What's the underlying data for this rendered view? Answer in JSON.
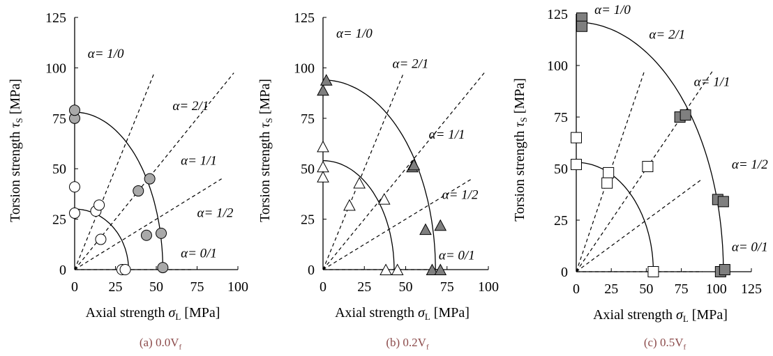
{
  "chart_data": [
    {
      "type": "scatter",
      "caption": "(a) 0.0V",
      "caption_sub": "f",
      "xlabel": "Axial strength",
      "xlabel_sym": "σ",
      "xlabel_sub": "L",
      "xlabel_unit": "[MPa]",
      "ylabel": "Torsion strength",
      "ylabel_sym": "τ",
      "ylabel_sub": "S",
      "ylabel_unit": "[MPa]",
      "xlim": [
        0,
        100
      ],
      "ylim": [
        0,
        125
      ],
      "xticks": [
        "0",
        "25",
        "50",
        "75",
        "100"
      ],
      "yticks": [
        "0",
        "25",
        "50",
        "75",
        "100",
        "125"
      ],
      "grid": false,
      "marker": "circle",
      "series": [
        {
          "fill": "#ffffff",
          "points": [
            [
              0,
              28
            ],
            [
              0,
              41
            ],
            [
              13,
              29
            ],
            [
              15,
              32
            ],
            [
              16,
              15
            ],
            [
              29,
              0
            ],
            [
              31,
              0
            ]
          ]
        },
        {
          "fill": "#a9a9a9",
          "points": [
            [
              0,
              75
            ],
            [
              0,
              79
            ],
            [
              39,
              39
            ],
            [
              46,
              45
            ],
            [
              44,
              17
            ],
            [
              53,
              18
            ],
            [
              54,
              1
            ]
          ]
        }
      ],
      "envelopes": [
        {
          "a": 33,
          "b": 30
        },
        {
          "a": 54,
          "b": 78
        }
      ],
      "ratio_lines": [
        {
          "label": "α= 1/0",
          "ratio": null,
          "lx": 8,
          "ly": 105
        },
        {
          "label": "α= 2/1",
          "ratio": 2,
          "lx": 60,
          "ly": 79
        },
        {
          "label": "α= 1/1",
          "ratio": 1,
          "lx": 65,
          "ly": 52
        },
        {
          "label": "α= 1/2",
          "ratio": 0.5,
          "lx": 75,
          "ly": 26
        },
        {
          "label": "α= 0/1",
          "ratio": 0,
          "lx": 65,
          "ly": 6
        }
      ]
    },
    {
      "type": "scatter",
      "caption": "(b) 0.2V",
      "caption_sub": "f",
      "xlabel": "Axial strength",
      "xlabel_sym": "σ",
      "xlabel_sub": "L",
      "xlabel_unit": "[MPa]",
      "ylabel": "Torsion strength",
      "ylabel_sym": "τ",
      "ylabel_sub": "S",
      "ylabel_unit": "[MPa]",
      "xlim": [
        0,
        100
      ],
      "ylim": [
        0,
        125
      ],
      "xticks": [
        "0",
        "25",
        "50",
        "75",
        "100"
      ],
      "yticks": [
        "0",
        "25",
        "50",
        "75",
        "100",
        "125"
      ],
      "grid": false,
      "marker": "triangle",
      "series": [
        {
          "fill": "#ffffff",
          "points": [
            [
              0,
              61
            ],
            [
              0,
              51
            ],
            [
              0,
              46
            ],
            [
              22,
              43
            ],
            [
              16,
              32
            ],
            [
              37,
              35
            ],
            [
              38,
              0
            ],
            [
              45,
              0
            ]
          ]
        },
        {
          "fill": "#7f7f7f",
          "points": [
            [
              0,
              89
            ],
            [
              2,
              94
            ],
            [
              54,
              51
            ],
            [
              55,
              52
            ],
            [
              62,
              20
            ],
            [
              71,
              22
            ],
            [
              66,
              0
            ],
            [
              71,
              0
            ]
          ]
        }
      ],
      "envelopes": [
        {
          "a": 43,
          "b": 54
        },
        {
          "a": 68,
          "b": 94
        }
      ],
      "ratio_lines": [
        {
          "label": "α= 1/0",
          "ratio": null,
          "lx": 8,
          "ly": 115
        },
        {
          "label": "α= 2/1",
          "ratio": 2,
          "lx": 42,
          "ly": 100
        },
        {
          "label": "α= 1/1",
          "ratio": 1,
          "lx": 64,
          "ly": 65
        },
        {
          "label": "α= 1/2",
          "ratio": 0.5,
          "lx": 72,
          "ly": 35
        },
        {
          "label": "α= 0/1",
          "ratio": 0,
          "lx": 70,
          "ly": 5
        }
      ]
    },
    {
      "type": "scatter",
      "caption": "(c) 0.5V",
      "caption_sub": "f",
      "xlabel": "Axial strength",
      "xlabel_sym": "σ",
      "xlabel_sub": "L",
      "xlabel_unit": "[MPa]",
      "ylabel": "Torsion strength",
      "ylabel_sym": "τ",
      "ylabel_sub": "S",
      "ylabel_unit": "[MPa]",
      "xlim": [
        0,
        125
      ],
      "ylim": [
        0,
        125
      ],
      "xticks": [
        "0",
        "25",
        "50",
        "75",
        "100",
        "125"
      ],
      "yticks": [
        "0",
        "25",
        "50",
        "75",
        "100",
        "125"
      ],
      "grid": false,
      "marker": "square",
      "series": [
        {
          "fill": "#ffffff",
          "points": [
            [
              0,
              65
            ],
            [
              0,
              52
            ],
            [
              23,
              48
            ],
            [
              22,
              43
            ],
            [
              51,
              51
            ],
            [
              55,
              0
            ]
          ]
        },
        {
          "fill": "#7f7f7f",
          "points": [
            [
              4,
              123
            ],
            [
              4,
              119
            ],
            [
              74,
              75
            ],
            [
              78,
              76
            ],
            [
              101,
              35
            ],
            [
              105,
              34
            ],
            [
              103,
              0
            ],
            [
              106,
              1
            ]
          ]
        }
      ],
      "envelopes": [
        {
          "a": 55,
          "b": 53
        },
        {
          "a": 105,
          "b": 121
        }
      ],
      "ratio_lines": [
        {
          "label": "α= 1/0",
          "ratio": null,
          "lx": 13,
          "ly": 125
        },
        {
          "label": "α= 2/1",
          "ratio": 2,
          "lx": 52,
          "ly": 113
        },
        {
          "label": "α= 1/1",
          "ratio": 1,
          "lx": 84,
          "ly": 90
        },
        {
          "label": "α= 1/2",
          "ratio": 0.5,
          "lx": 111,
          "ly": 50
        },
        {
          "label": "α= 0/1",
          "ratio": 0,
          "lx": 111,
          "ly": 10
        }
      ]
    }
  ]
}
